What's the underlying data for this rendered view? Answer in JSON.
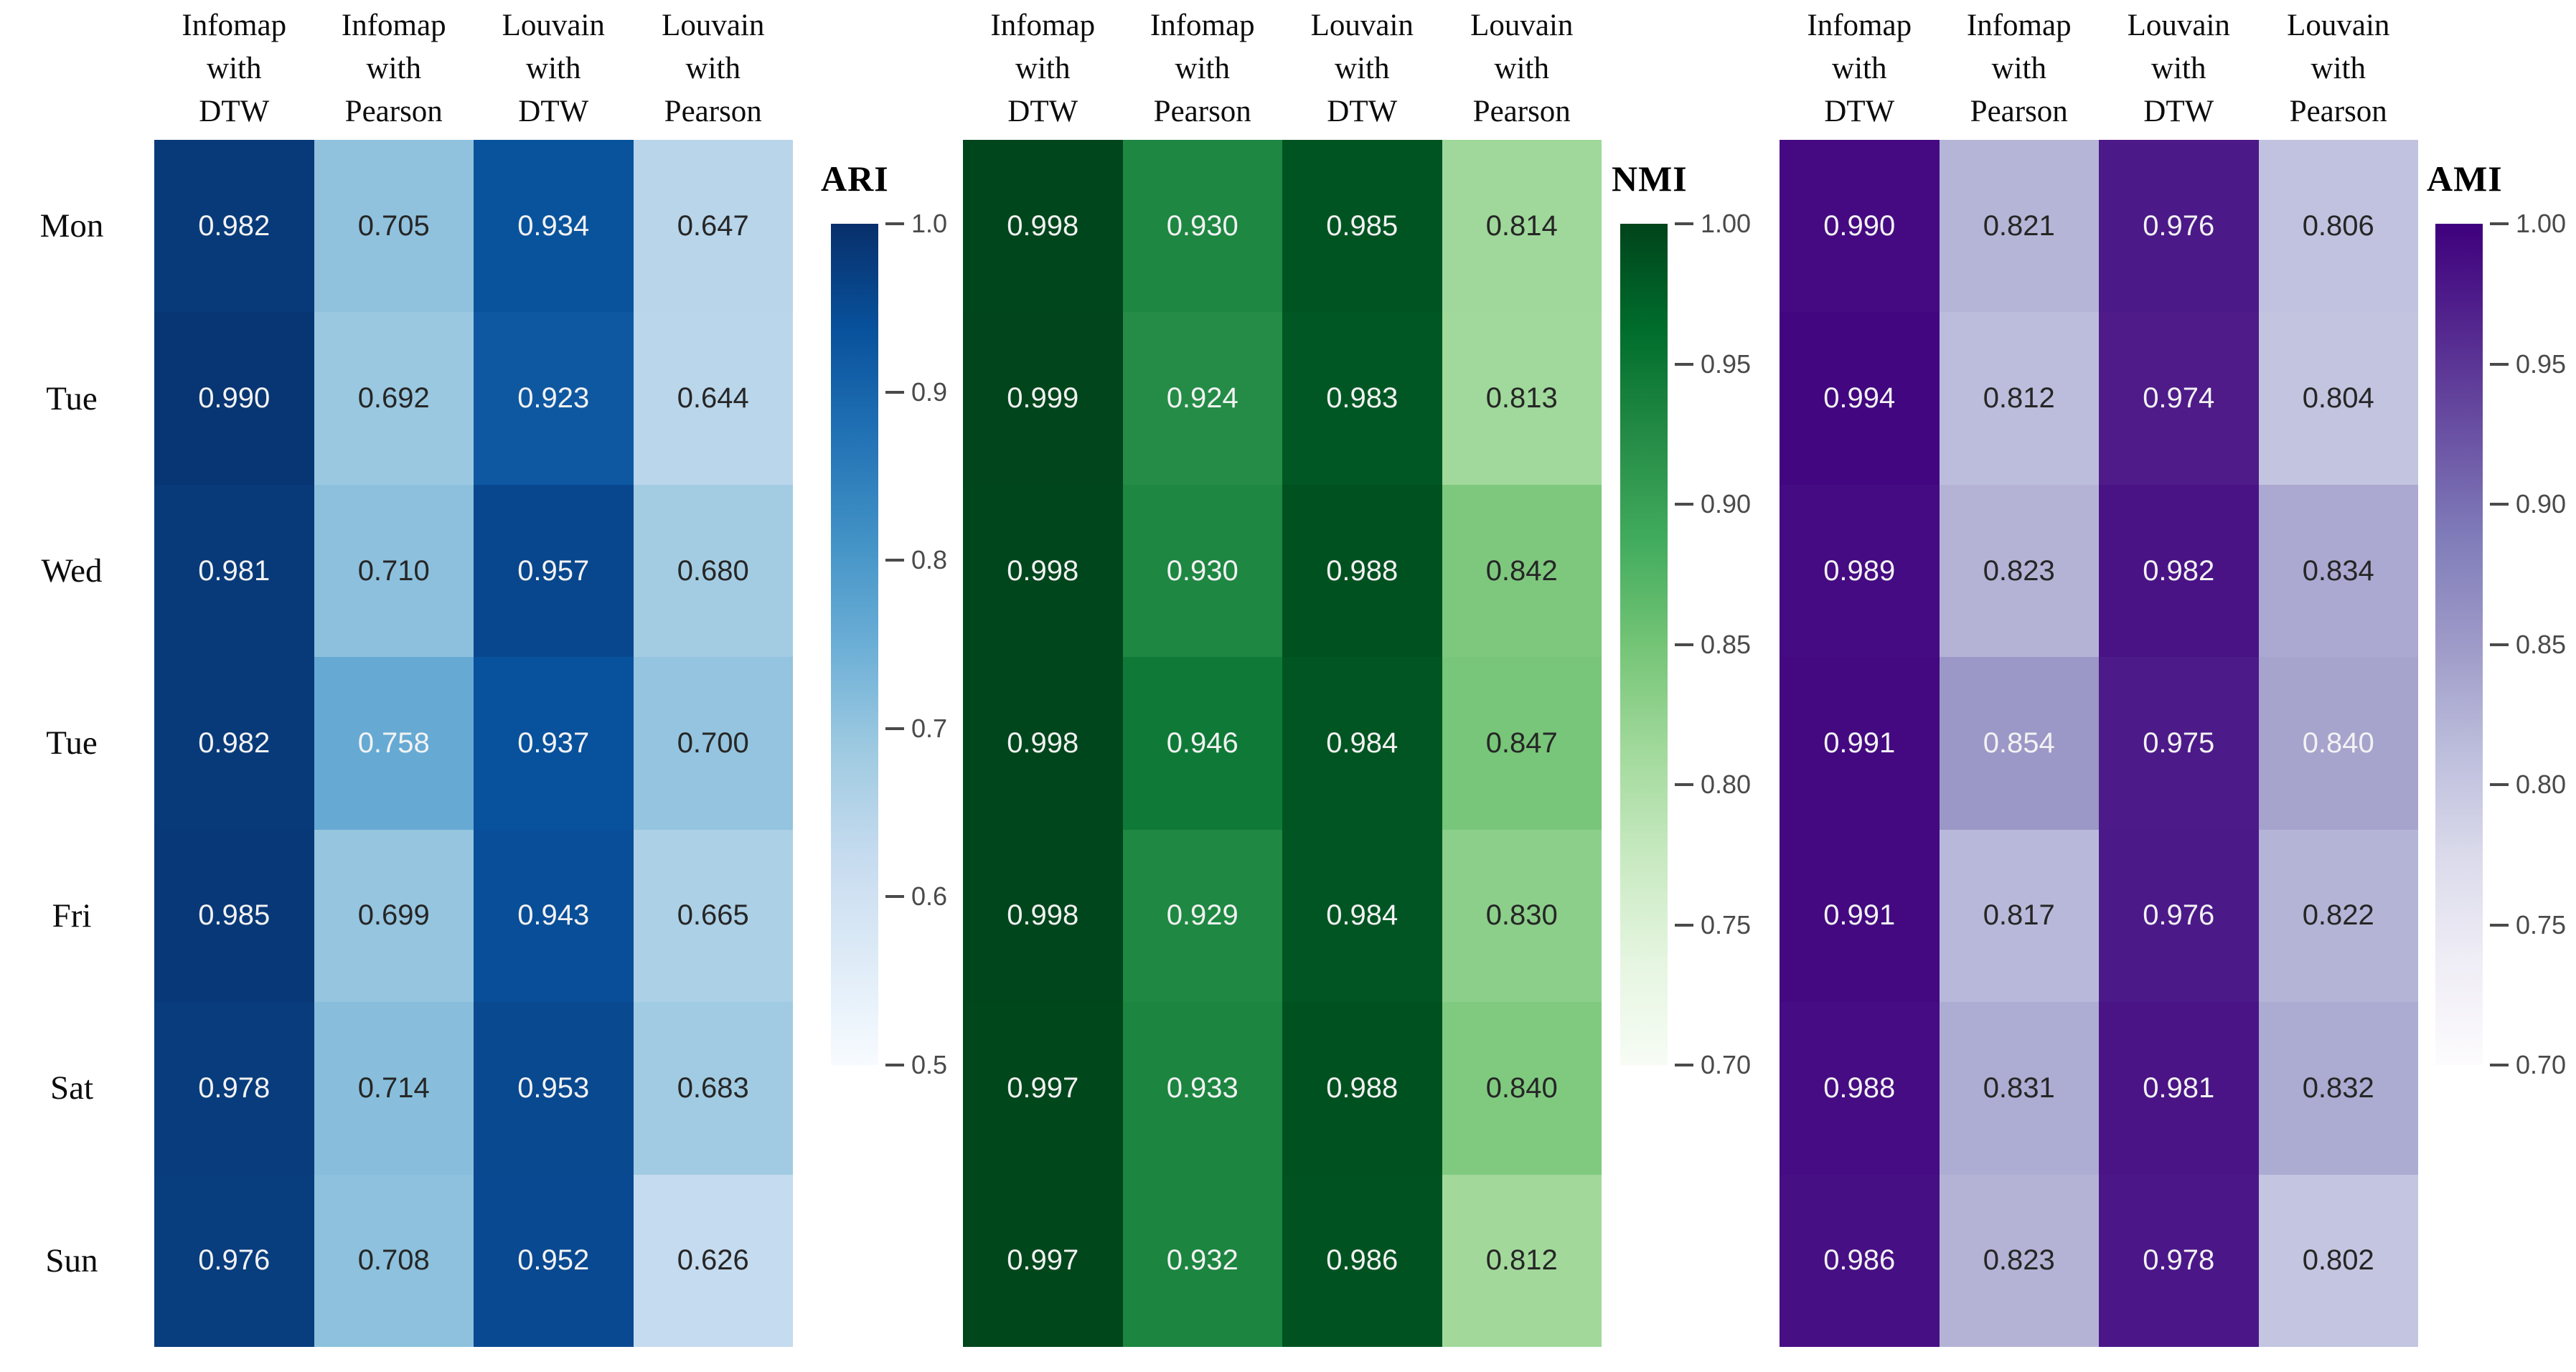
{
  "chart_data": [
    {
      "type": "heatmap",
      "title": "ARI",
      "colormap": "blues",
      "x_categories": [
        "Infomap with DTW",
        "Infomap with Pearson",
        "Louvain with DTW",
        "Louvain with Pearson"
      ],
      "y_categories": [
        "Mon",
        "Tue",
        "Wed",
        "Tue",
        "Fri",
        "Sat",
        "Sun"
      ],
      "vmin": 0.5,
      "vmax": 1.0,
      "colorbar_ticks": [
        "1.0",
        "0.9",
        "0.8",
        "0.7",
        "0.6",
        "0.5"
      ],
      "values": [
        [
          0.982,
          0.705,
          0.934,
          0.647
        ],
        [
          0.99,
          0.692,
          0.923,
          0.644
        ],
        [
          0.981,
          0.71,
          0.957,
          0.68
        ],
        [
          0.982,
          0.758,
          0.937,
          0.7
        ],
        [
          0.985,
          0.699,
          0.943,
          0.665
        ],
        [
          0.978,
          0.714,
          0.953,
          0.683
        ],
        [
          0.976,
          0.708,
          0.952,
          0.626
        ]
      ]
    },
    {
      "type": "heatmap",
      "title": "NMI",
      "colormap": "greens",
      "x_categories": [
        "Infomap with DTW",
        "Infomap with Pearson",
        "Louvain with DTW",
        "Louvain with Pearson"
      ],
      "y_categories": [
        "Mon",
        "Tue",
        "Wed",
        "Tue",
        "Fri",
        "Sat",
        "Sun"
      ],
      "vmin": 0.7,
      "vmax": 1.0,
      "colorbar_ticks": [
        "1.00",
        "0.95",
        "0.90",
        "0.85",
        "0.80",
        "0.75",
        "0.70"
      ],
      "values": [
        [
          0.998,
          0.93,
          0.985,
          0.814
        ],
        [
          0.999,
          0.924,
          0.983,
          0.813
        ],
        [
          0.998,
          0.93,
          0.988,
          0.842
        ],
        [
          0.998,
          0.946,
          0.984,
          0.847
        ],
        [
          0.998,
          0.929,
          0.984,
          0.83
        ],
        [
          0.997,
          0.933,
          0.988,
          0.84
        ],
        [
          0.997,
          0.932,
          0.986,
          0.812
        ]
      ]
    },
    {
      "type": "heatmap",
      "title": "AMI",
      "colormap": "purples",
      "x_categories": [
        "Infomap with DTW",
        "Infomap with Pearson",
        "Louvain with DTW",
        "Louvain with Pearson"
      ],
      "y_categories": [
        "Mon",
        "Tue",
        "Wed",
        "Tue",
        "Fri",
        "Sat",
        "Sun"
      ],
      "vmin": 0.7,
      "vmax": 1.0,
      "colorbar_ticks": [
        "1.00",
        "0.95",
        "0.90",
        "0.85",
        "0.80",
        "0.75",
        "0.70"
      ],
      "values": [
        [
          0.99,
          0.821,
          0.976,
          0.806
        ],
        [
          0.994,
          0.812,
          0.974,
          0.804
        ],
        [
          0.989,
          0.823,
          0.982,
          0.834
        ],
        [
          0.991,
          0.854,
          0.975,
          0.84
        ],
        [
          0.991,
          0.817,
          0.976,
          0.822
        ],
        [
          0.988,
          0.831,
          0.981,
          0.832
        ],
        [
          0.986,
          0.823,
          0.978,
          0.802
        ]
      ]
    }
  ],
  "header_line_words": [
    [
      "Infomap",
      "with",
      "DTW"
    ],
    [
      "Infomap",
      "with",
      "Pearson"
    ],
    [
      "Louvain",
      "with",
      "DTW"
    ],
    [
      "Louvain",
      "with",
      "Pearson"
    ]
  ],
  "colormaps": {
    "blues": [
      "#f7fbff",
      "#deebf7",
      "#c6dbef",
      "#9ecae1",
      "#6baed6",
      "#4292c6",
      "#2171b5",
      "#08519c",
      "#08306b"
    ],
    "greens": [
      "#f7fcf5",
      "#e5f5e0",
      "#c7e9c0",
      "#a1d99b",
      "#74c476",
      "#41ab5d",
      "#238b45",
      "#006d2c",
      "#00441b"
    ],
    "purples": [
      "#fcfbfd",
      "#efedf5",
      "#dadaeb",
      "#bcbddc",
      "#9e9ac8",
      "#807dba",
      "#6a51a3",
      "#54278f",
      "#3f007d"
    ]
  },
  "annotation_text_colors": {
    "light": "#f2f2f2",
    "dark": "#262626"
  }
}
